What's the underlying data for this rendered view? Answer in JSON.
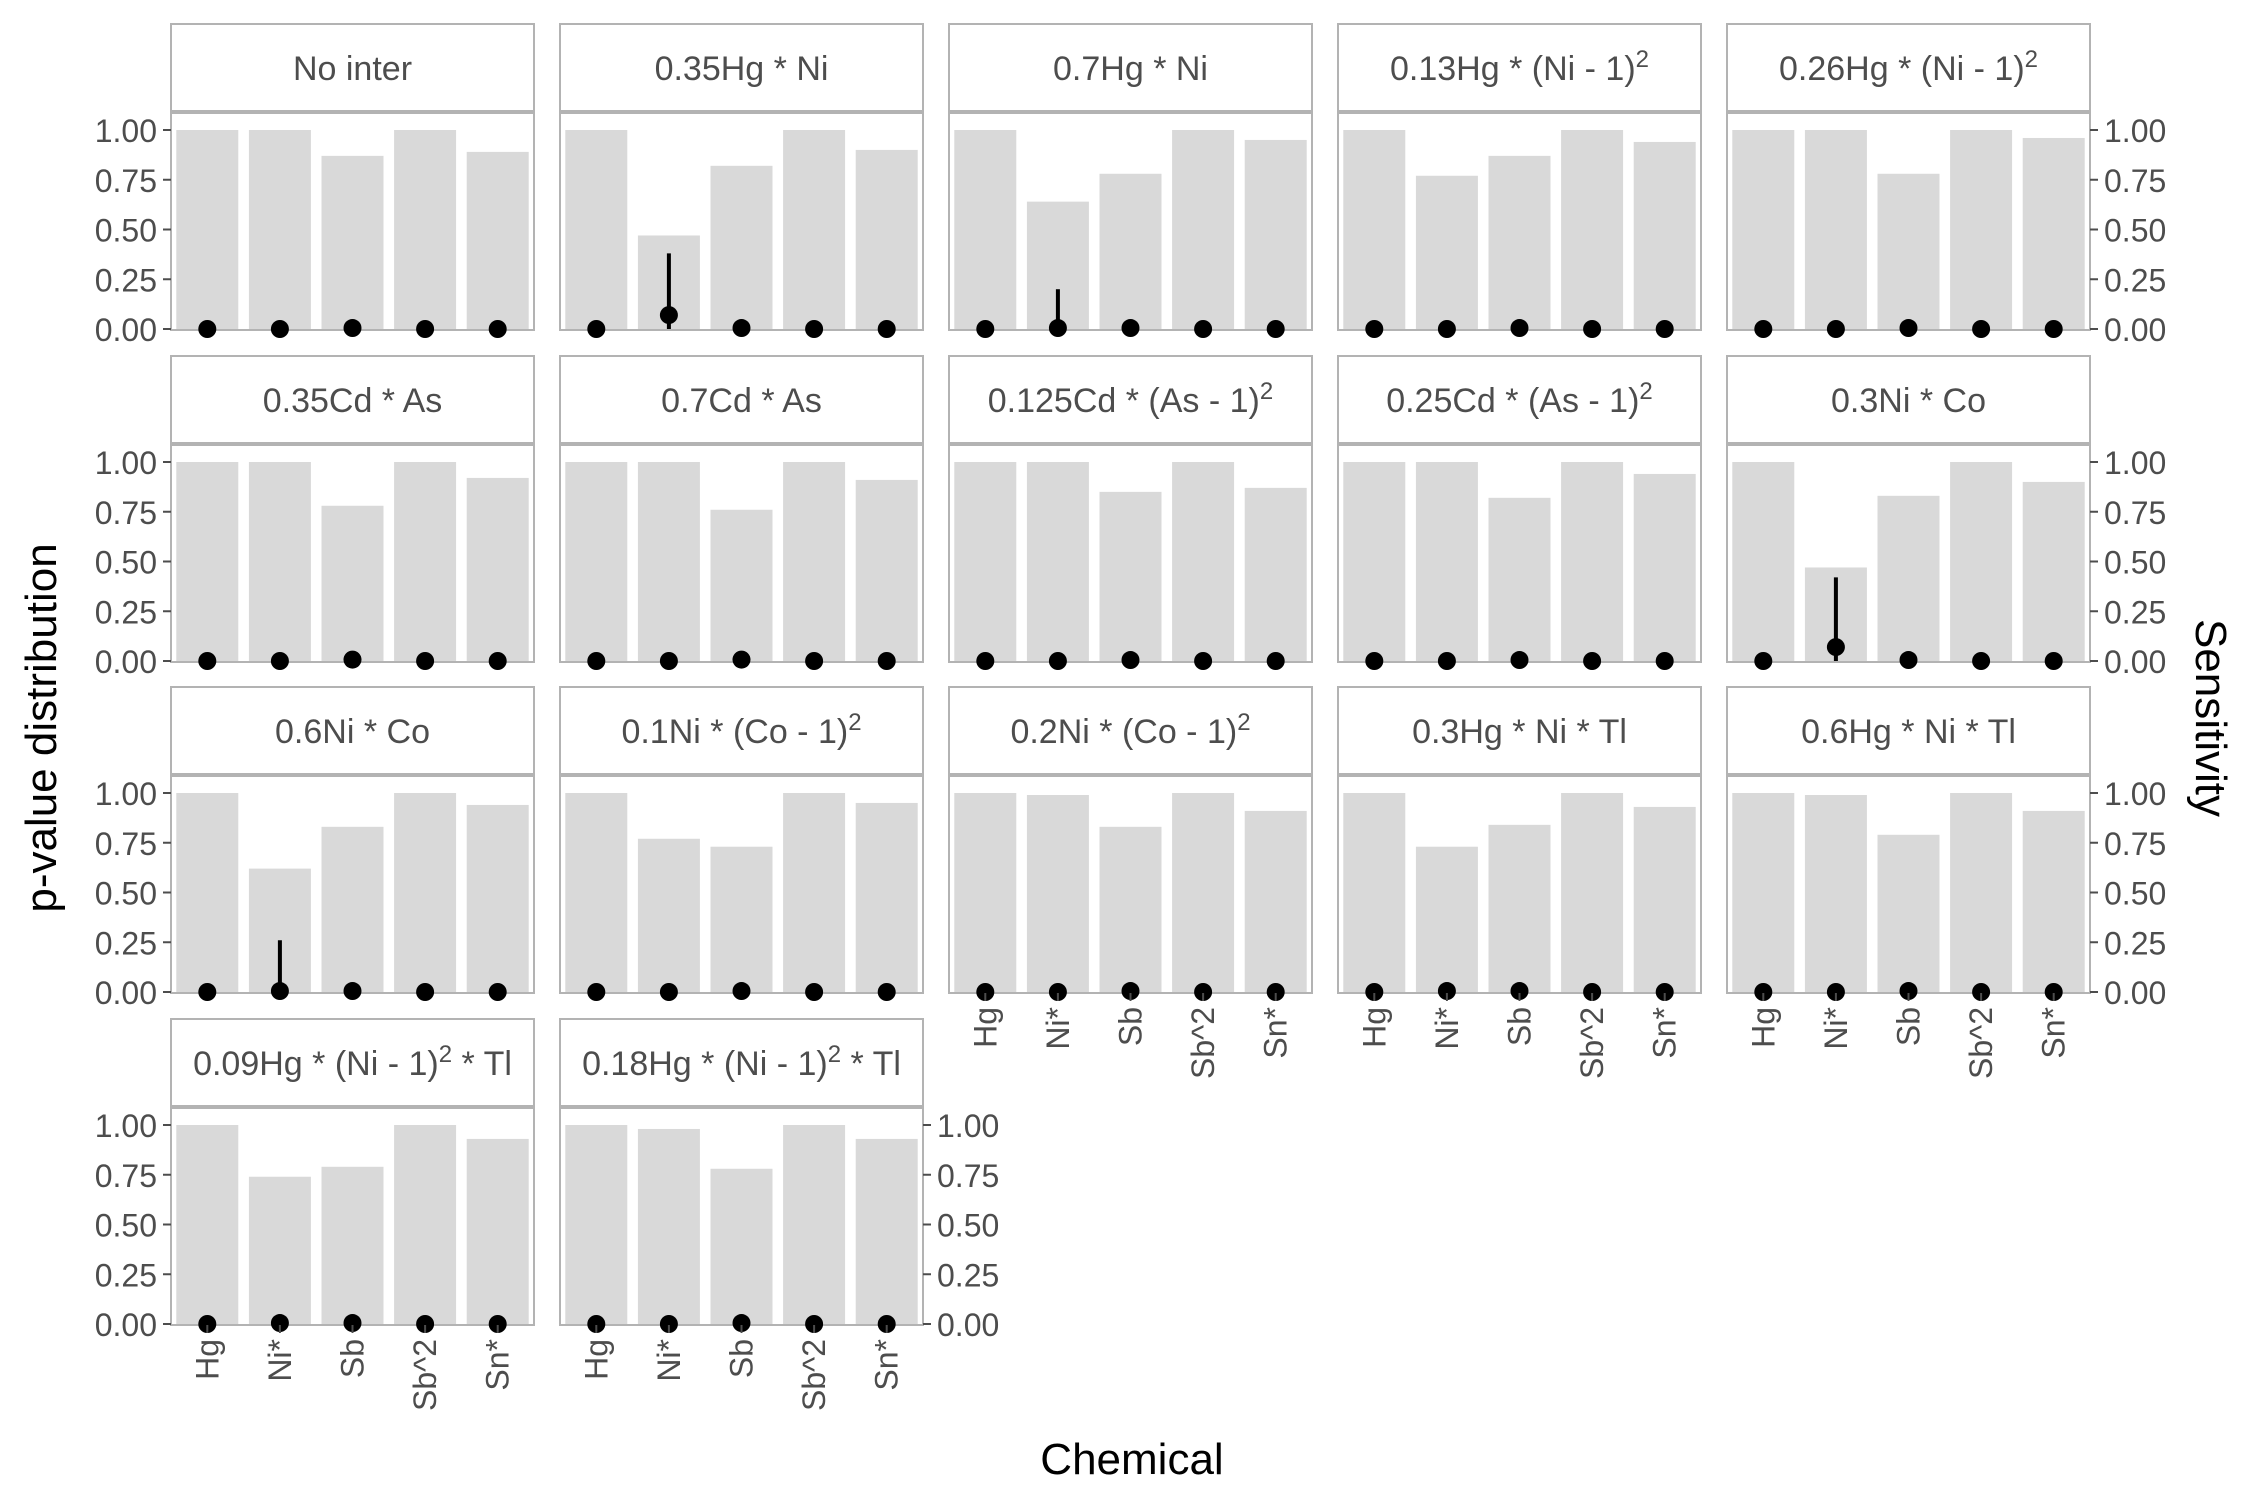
{
  "chart_data": {
    "type": "bar",
    "xlabel": "Chemical",
    "ylabel_left": "p-value distribution",
    "ylabel_right": "Sensitivity",
    "ylim": [
      0,
      1
    ],
    "yticks": [
      "0.00",
      "0.25",
      "0.50",
      "0.75",
      "1.00"
    ],
    "ytick_values": [
      0,
      0.25,
      0.5,
      0.75,
      1
    ],
    "categories": [
      "Hg",
      "Ni*",
      "Sb",
      "Sb^2",
      "Sn*"
    ],
    "colors": {
      "bar": "#d9d9d9",
      "point": "#000000",
      "strip_bg": "#ffffff",
      "strip_border": "#b3b3b3",
      "panel_border": "#b3b3b3",
      "text": "#4d4d4d"
    },
    "panels": [
      {
        "title": "No inter",
        "sensitivity": [
          1.0,
          1.0,
          0.87,
          1.0,
          0.89
        ],
        "pvalue": [
          0,
          0,
          0.005,
          0,
          0
        ],
        "pvalue_upper": [
          0,
          0,
          0.005,
          0,
          0
        ]
      },
      {
        "title": "0.35Hg * Ni",
        "sensitivity": [
          1.0,
          0.47,
          0.82,
          1.0,
          0.9
        ],
        "pvalue": [
          0,
          0.07,
          0.005,
          0,
          0
        ],
        "pvalue_upper": [
          0,
          0.38,
          0.005,
          0,
          0
        ]
      },
      {
        "title": "0.7Hg * Ni",
        "sensitivity": [
          1.0,
          0.64,
          0.78,
          1.0,
          0.95
        ],
        "pvalue": [
          0,
          0.005,
          0.005,
          0,
          0
        ],
        "pvalue_upper": [
          0,
          0.2,
          0.005,
          0,
          0
        ]
      },
      {
        "title": "0.13Hg * (Ni - 1)^2",
        "sensitivity": [
          1.0,
          0.77,
          0.87,
          1.0,
          0.94
        ],
        "pvalue": [
          0,
          0,
          0.005,
          0,
          0
        ],
        "pvalue_upper": [
          0,
          0,
          0.005,
          0,
          0
        ]
      },
      {
        "title": "0.26Hg * (Ni - 1)^2",
        "sensitivity": [
          1.0,
          1.0,
          0.78,
          1.0,
          0.96
        ],
        "pvalue": [
          0,
          0,
          0.005,
          0,
          0
        ],
        "pvalue_upper": [
          0,
          0,
          0.005,
          0,
          0
        ]
      },
      {
        "title": "0.35Cd * As",
        "sensitivity": [
          1.0,
          1.0,
          0.78,
          1.0,
          0.92
        ],
        "pvalue": [
          0,
          0,
          0.007,
          0,
          0
        ],
        "pvalue_upper": [
          0,
          0,
          0.007,
          0,
          0
        ]
      },
      {
        "title": "0.7Cd * As",
        "sensitivity": [
          1.0,
          1.0,
          0.76,
          1.0,
          0.91
        ],
        "pvalue": [
          0,
          0,
          0.007,
          0,
          0
        ],
        "pvalue_upper": [
          0,
          0,
          0.007,
          0,
          0
        ]
      },
      {
        "title": "0.125Cd * (As - 1)^2",
        "sensitivity": [
          1.0,
          1.0,
          0.85,
          1.0,
          0.87
        ],
        "pvalue": [
          0,
          0,
          0.005,
          0,
          0
        ],
        "pvalue_upper": [
          0,
          0,
          0.005,
          0,
          0
        ]
      },
      {
        "title": "0.25Cd * (As - 1)^2",
        "sensitivity": [
          1.0,
          1.0,
          0.82,
          1.0,
          0.94
        ],
        "pvalue": [
          0,
          0,
          0.005,
          0,
          0
        ],
        "pvalue_upper": [
          0,
          0,
          0.005,
          0,
          0
        ]
      },
      {
        "title": "0.3Ni * Co",
        "sensitivity": [
          1.0,
          0.47,
          0.83,
          1.0,
          0.9
        ],
        "pvalue": [
          0,
          0.07,
          0.005,
          0,
          0
        ],
        "pvalue_upper": [
          0,
          0.42,
          0.005,
          0,
          0
        ]
      },
      {
        "title": "0.6Ni * Co",
        "sensitivity": [
          1.0,
          0.62,
          0.83,
          1.0,
          0.94
        ],
        "pvalue": [
          0,
          0.005,
          0.005,
          0,
          0
        ],
        "pvalue_upper": [
          0,
          0.26,
          0.005,
          0,
          0
        ]
      },
      {
        "title": "0.1Ni * (Co - 1)^2",
        "sensitivity": [
          1.0,
          0.77,
          0.73,
          1.0,
          0.95
        ],
        "pvalue": [
          0,
          0,
          0.005,
          0,
          0
        ],
        "pvalue_upper": [
          0,
          0,
          0.005,
          0,
          0
        ]
      },
      {
        "title": "0.2Ni * (Co - 1)^2",
        "sensitivity": [
          1.0,
          0.99,
          0.83,
          1.0,
          0.91
        ],
        "pvalue": [
          0,
          0,
          0.005,
          0,
          0
        ],
        "pvalue_upper": [
          0,
          0,
          0.005,
          0,
          0
        ]
      },
      {
        "title": "0.3Hg * Ni * Tl",
        "sensitivity": [
          1.0,
          0.73,
          0.84,
          1.0,
          0.93
        ],
        "pvalue": [
          0,
          0.005,
          0.005,
          0,
          0
        ],
        "pvalue_upper": [
          0,
          0.005,
          0.005,
          0,
          0
        ]
      },
      {
        "title": "0.6Hg * Ni * Tl",
        "sensitivity": [
          1.0,
          0.99,
          0.79,
          1.0,
          0.91
        ],
        "pvalue": [
          0,
          0,
          0.005,
          0,
          0
        ],
        "pvalue_upper": [
          0,
          0,
          0.005,
          0,
          0
        ]
      },
      {
        "title": "0.09Hg * (Ni - 1)^2 * Tl",
        "sensitivity": [
          1.0,
          0.74,
          0.79,
          1.0,
          0.93
        ],
        "pvalue": [
          0,
          0.005,
          0.005,
          0,
          0
        ],
        "pvalue_upper": [
          0,
          0.005,
          0.005,
          0,
          0
        ]
      },
      {
        "title": "0.18Hg * (Ni - 1)^2 * Tl",
        "sensitivity": [
          1.0,
          0.98,
          0.78,
          1.0,
          0.93
        ],
        "pvalue": [
          0,
          0,
          0.005,
          0,
          0
        ],
        "pvalue_upper": [
          0,
          0,
          0.005,
          0,
          0
        ]
      }
    ]
  }
}
